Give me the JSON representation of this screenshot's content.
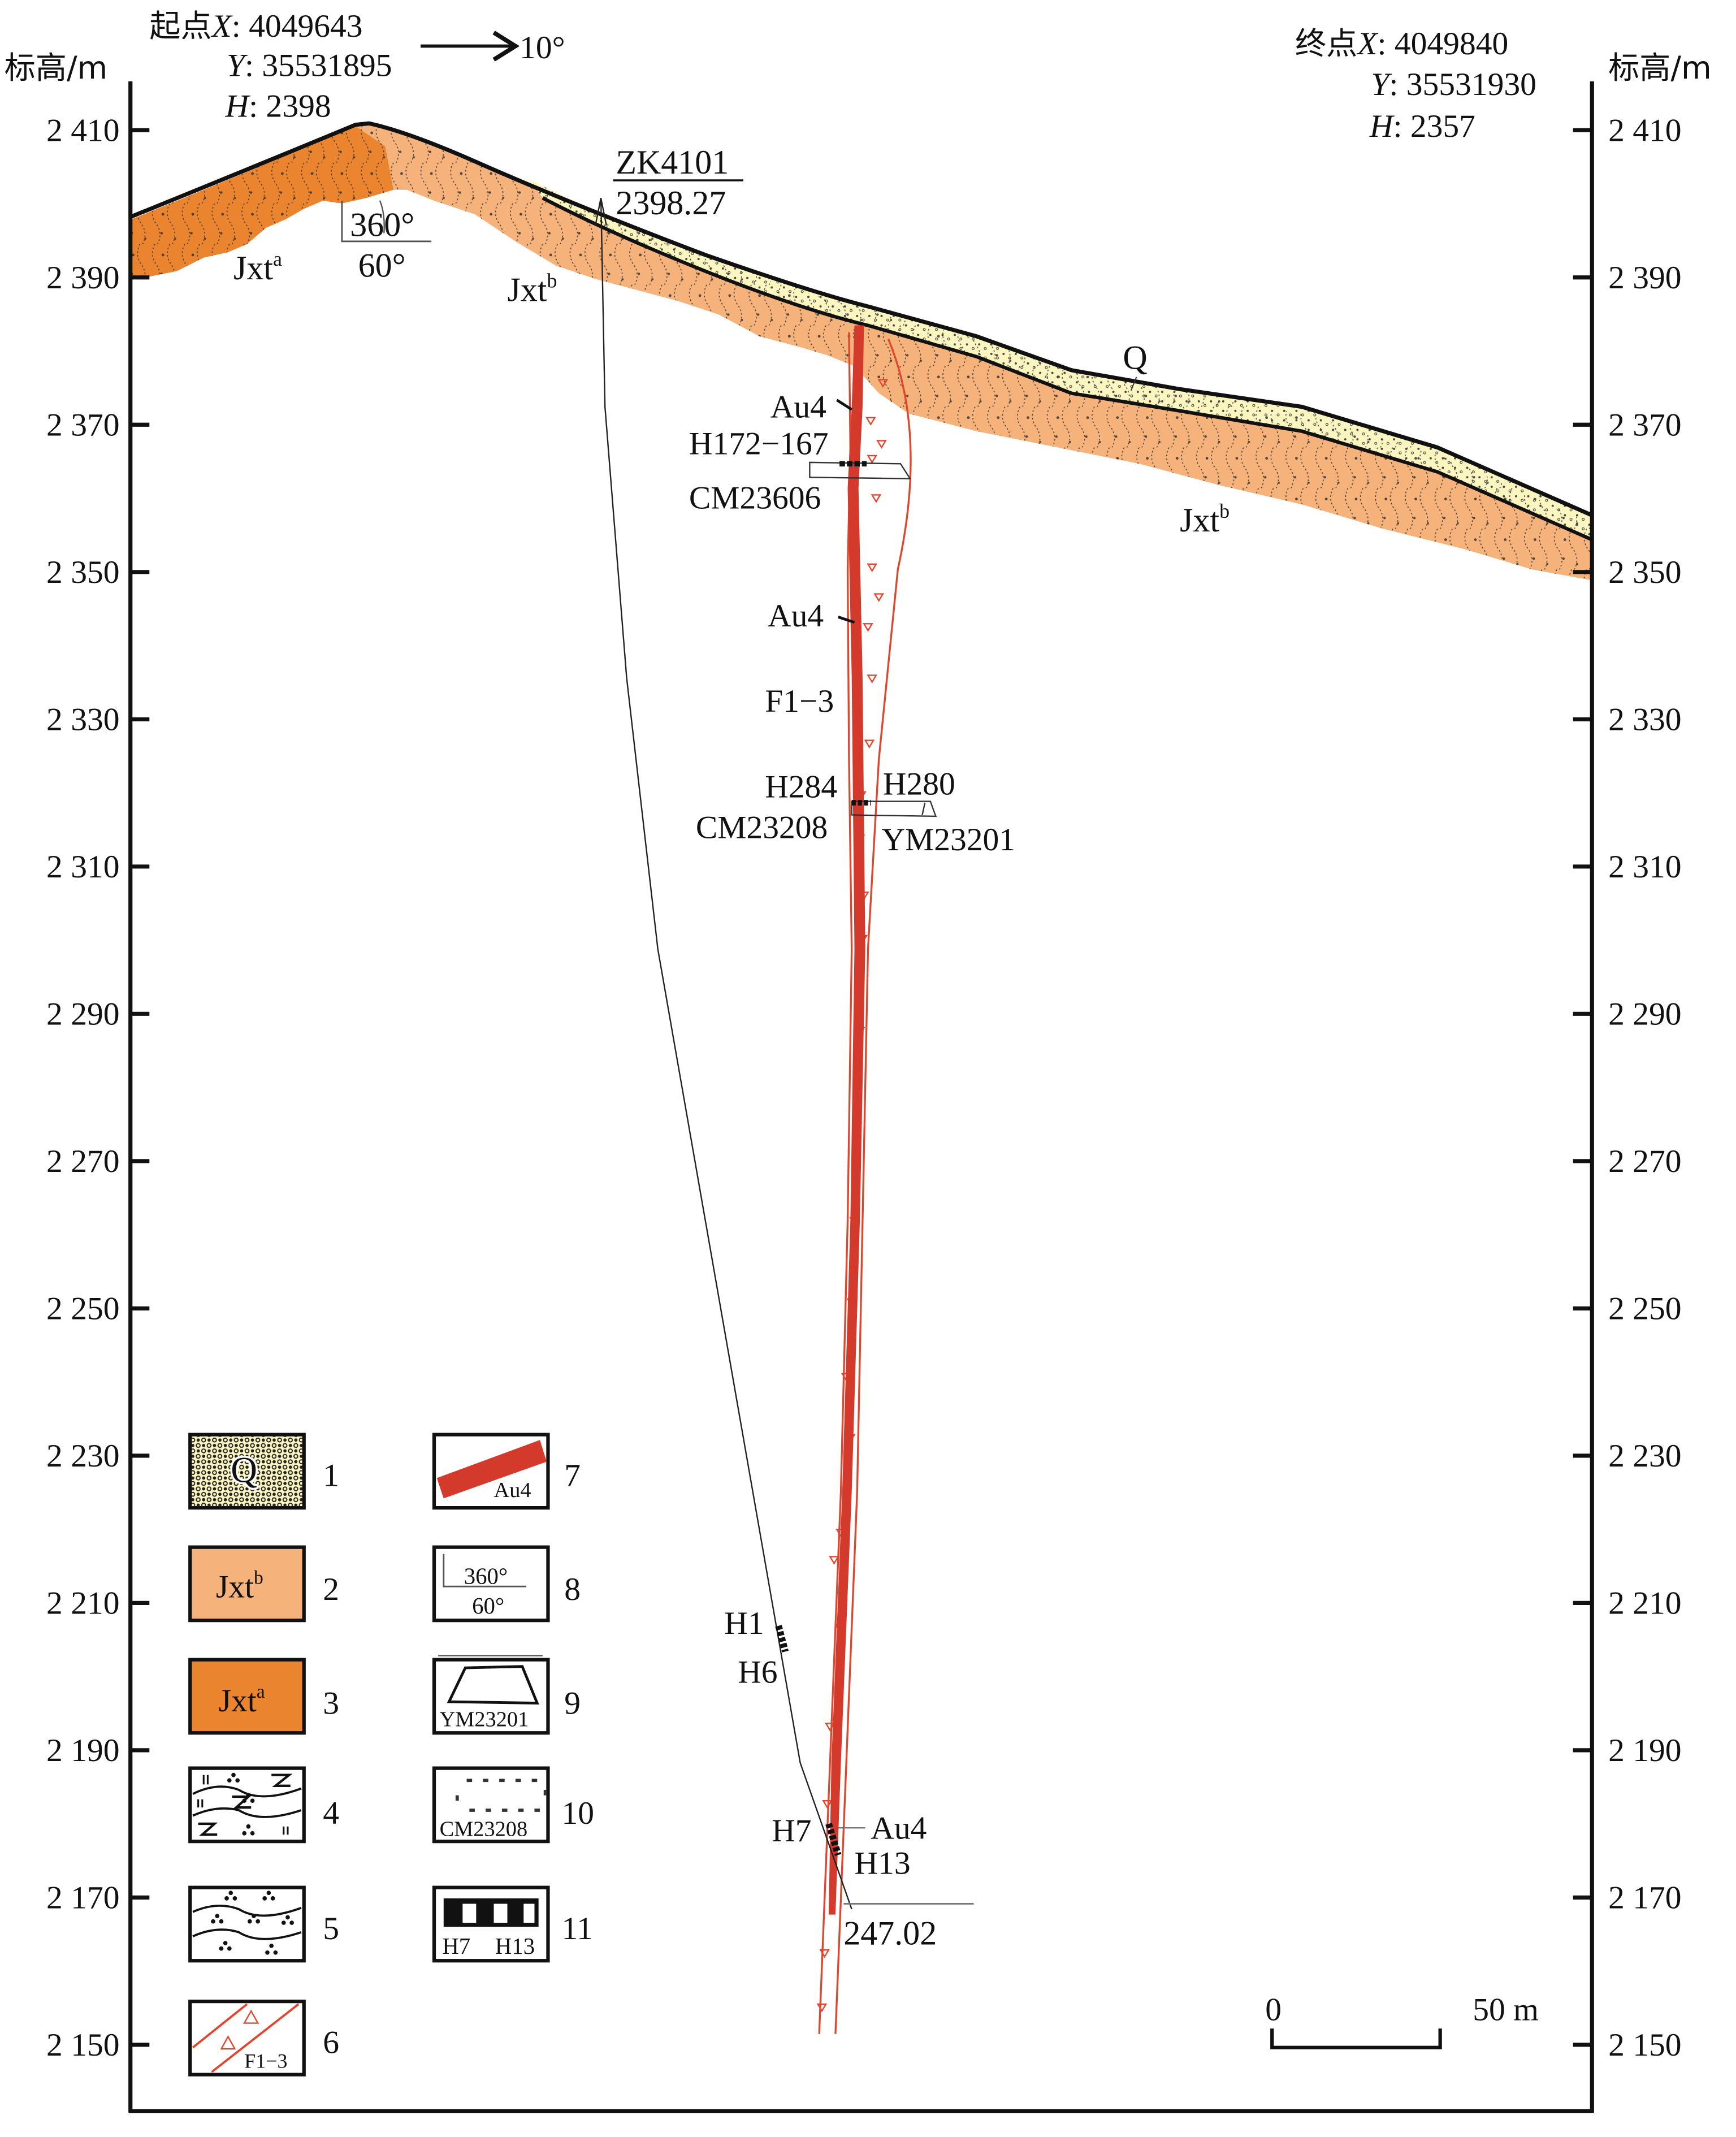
{
  "colors": {
    "q": "#FBF5C0",
    "jxtb": "#F5B27A",
    "jxta": "#EB842F",
    "ore": "#D43A2C",
    "fault": "#E0462E",
    "ink": "#111111"
  },
  "axis": {
    "left_label": "标高/m",
    "right_label": "标高/m",
    "ticks": [
      "2 410",
      "2 390",
      "2 370",
      "2 350",
      "2 330",
      "2 310",
      "2 290",
      "2 270",
      "2 250",
      "2 230",
      "2 210",
      "2 190",
      "2 170",
      "2 150"
    ],
    "tick_values": [
      2410,
      2390,
      2370,
      2350,
      2330,
      2310,
      2290,
      2270,
      2250,
      2230,
      2210,
      2190,
      2170,
      2150
    ]
  },
  "start_point": {
    "label": "起点",
    "x_key": "X",
    "x_val": ": 4049643",
    "y_key": "Y",
    "y_val": ": 35531895",
    "h_key": "H",
    "h_val": ": 2398"
  },
  "end_point": {
    "label": "终点",
    "x_key": "X",
    "x_val": ": 4049840",
    "y_key": "Y",
    "y_val": ": 35531930",
    "h_key": "H",
    "h_val": ": 2357"
  },
  "direction": {
    "label": "10°",
    "icon": "arrow-right-icon"
  },
  "drill_hole": {
    "name": "ZK4101",
    "collar_elevation": "2398.27",
    "depth": "247.02"
  },
  "attitude": {
    "strike": "360°",
    "dip": "60°"
  },
  "units": {
    "jxta": {
      "base": "Jxt",
      "sup": "a"
    },
    "jxtb": {
      "base": "Jxt",
      "sup": "b"
    },
    "q": "Q"
  },
  "annotations": {
    "au4_top": "Au4",
    "h172": "H172−167",
    "cm23606": "CM23606",
    "au4_mid": "Au4",
    "f13": "F1−3",
    "h284": "H284",
    "h280": "H280",
    "cm23208": "CM23208",
    "ym23201": "YM23201",
    "h1": "H1",
    "h6": "H6",
    "h7": "H7",
    "au4_bottom": "Au4",
    "h13": "H13"
  },
  "scale_bar": {
    "start": "0",
    "end": "50 m"
  },
  "legend": [
    {
      "num": "1",
      "symbol": "Q"
    },
    {
      "num": "2",
      "symbol_base": "Jxt",
      "symbol_sup": "b"
    },
    {
      "num": "3",
      "symbol_base": "Jxt",
      "symbol_sup": "a"
    },
    {
      "num": "4"
    },
    {
      "num": "5"
    },
    {
      "num": "6",
      "symbol": "F1−3"
    },
    {
      "num": "7",
      "symbol": "Au4"
    },
    {
      "num": "8",
      "strike": "360°",
      "dip": "60°"
    },
    {
      "num": "9",
      "symbol": "YM23201"
    },
    {
      "num": "10",
      "symbol": "CM23208"
    },
    {
      "num": "11",
      "left": "H7",
      "right": "H13"
    }
  ]
}
